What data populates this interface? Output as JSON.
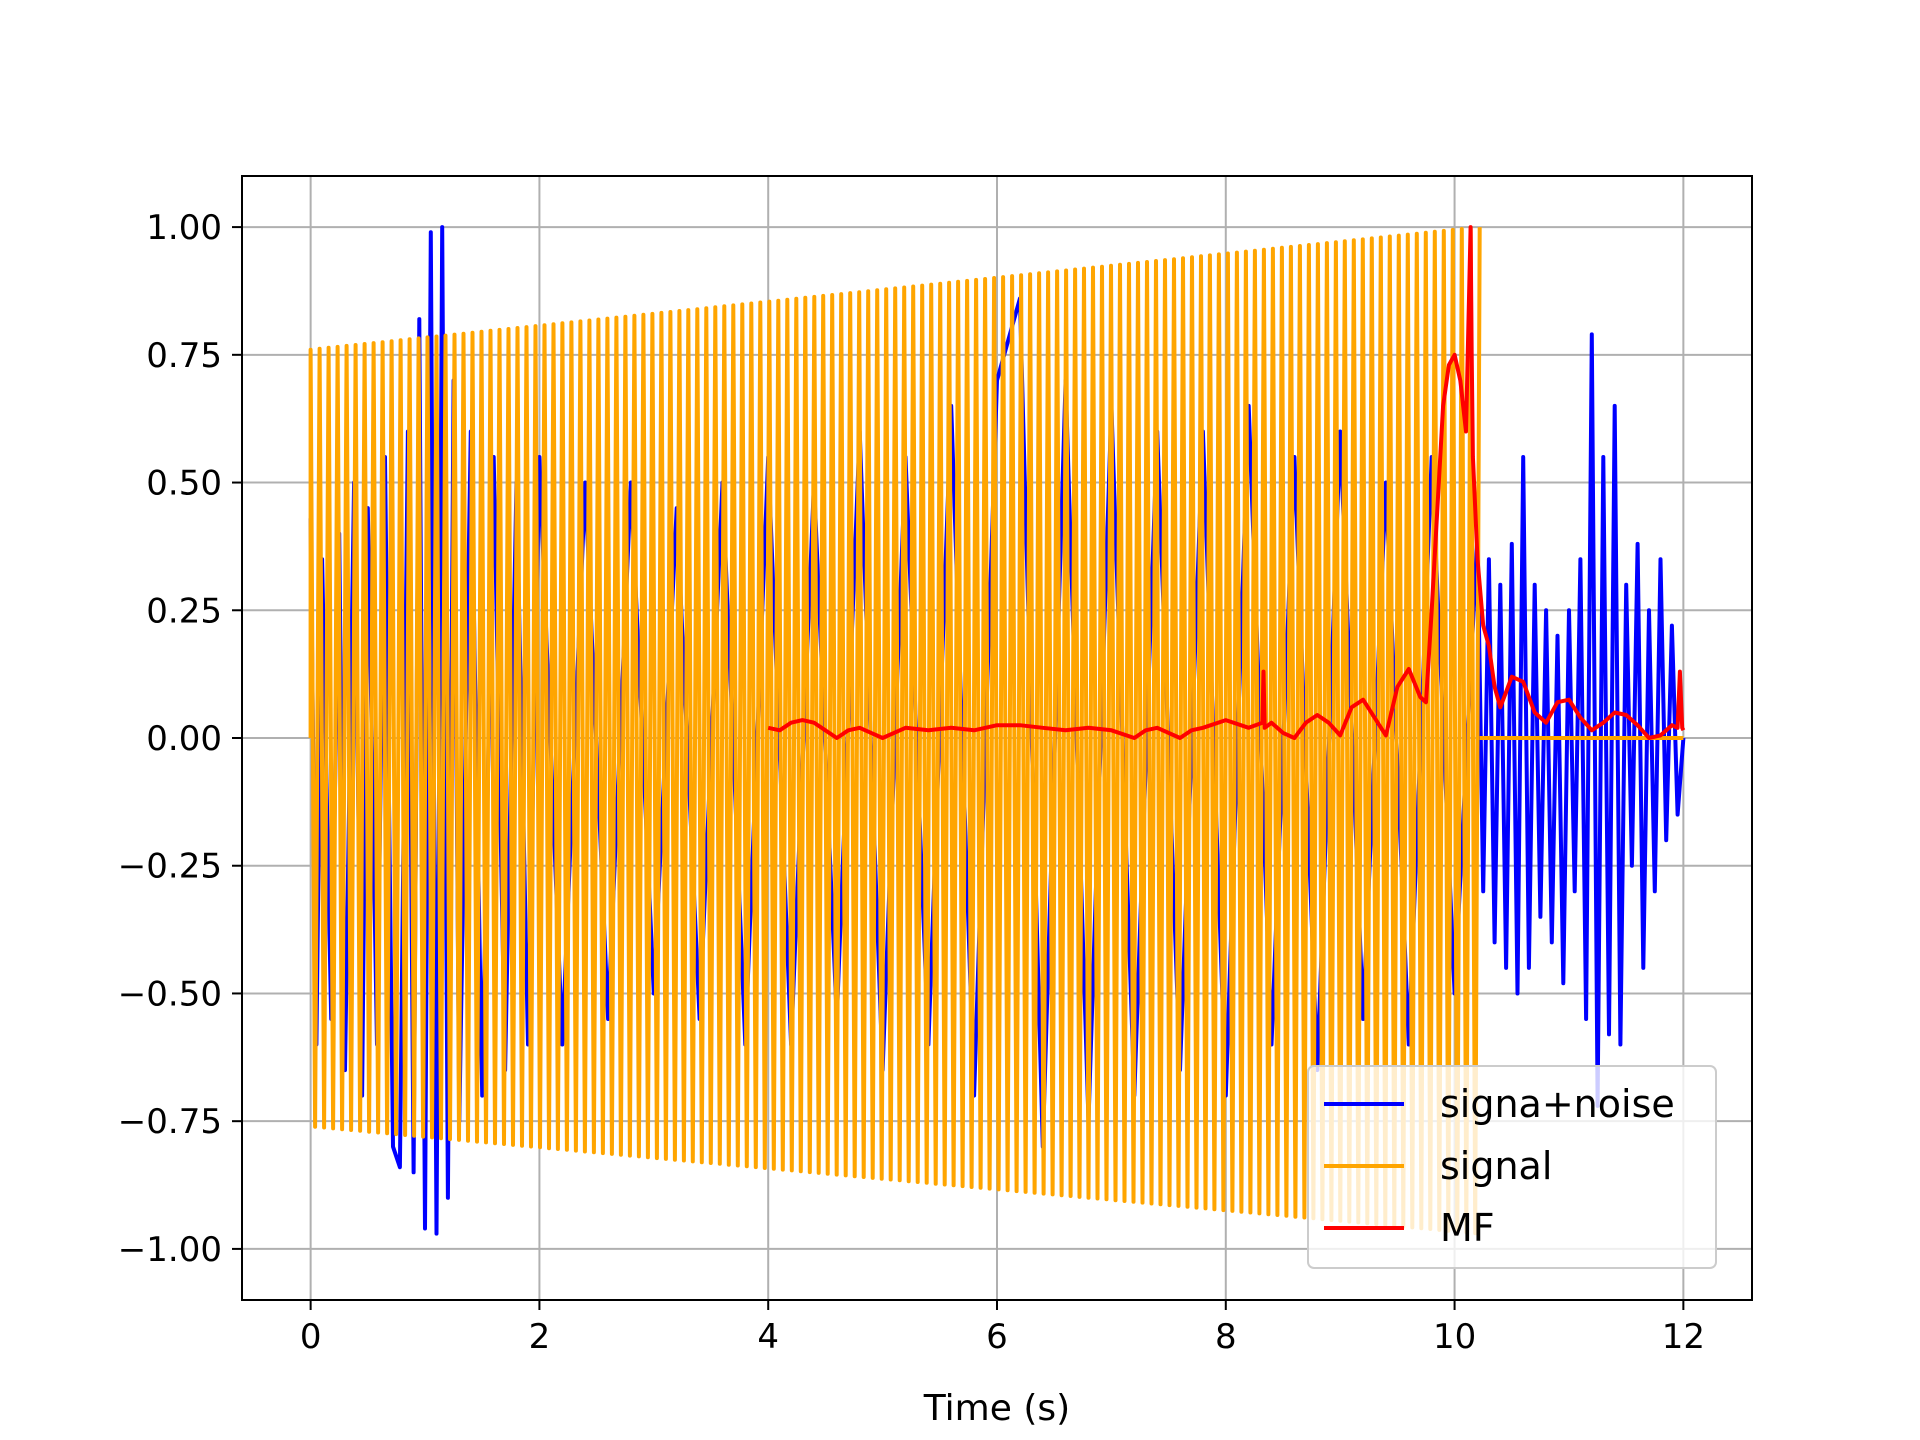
{
  "chart_data": {
    "type": "line",
    "title": "",
    "xlabel": "Time (s)",
    "ylabel": "",
    "xlim": [
      -0.6,
      12.6
    ],
    "ylim": [
      -1.1,
      1.1
    ],
    "xticks": [
      0,
      2,
      4,
      6,
      8,
      10,
      12
    ],
    "xtick_labels": [
      "0",
      "2",
      "4",
      "6",
      "8",
      "10",
      "12"
    ],
    "yticks": [
      1.0,
      0.75,
      0.5,
      0.25,
      0.0,
      -0.25,
      -0.5,
      -0.75,
      -1.0
    ],
    "ytick_labels": [
      "1.00",
      "0.75",
      "0.50",
      "0.25",
      "0.00",
      "−0.25",
      "−0.50",
      "−0.75",
      "−1.00"
    ],
    "grid": true,
    "legend_position": "lower-right",
    "series": [
      {
        "name": "signa+noise",
        "color": "#0000ff",
        "x": [
          0.0,
          0.05,
          0.1,
          0.18,
          0.25,
          0.3,
          0.38,
          0.45,
          0.5,
          0.58,
          0.65,
          0.72,
          0.78,
          0.85,
          0.9,
          0.95,
          1.0,
          1.05,
          1.1,
          1.15,
          1.2,
          1.25,
          1.3,
          1.4,
          1.5,
          1.6,
          1.7,
          1.8,
          1.9,
          2.0,
          2.2,
          2.4,
          2.6,
          2.8,
          3.0,
          3.2,
          3.4,
          3.6,
          3.8,
          4.0,
          4.2,
          4.4,
          4.6,
          4.8,
          5.0,
          5.2,
          5.4,
          5.6,
          5.8,
          6.0,
          6.2,
          6.4,
          6.6,
          6.8,
          7.0,
          7.2,
          7.4,
          7.6,
          7.8,
          8.0,
          8.2,
          8.4,
          8.6,
          8.8,
          9.0,
          9.2,
          9.4,
          9.6,
          9.8,
          10.0,
          10.2,
          10.25,
          10.3,
          10.35,
          10.4,
          10.45,
          10.5,
          10.55,
          10.6,
          10.65,
          10.7,
          10.75,
          10.8,
          10.85,
          10.9,
          10.95,
          11.0,
          11.05,
          11.1,
          11.15,
          11.2,
          11.25,
          11.3,
          11.35,
          11.4,
          11.45,
          11.5,
          11.55,
          11.6,
          11.65,
          11.7,
          11.75,
          11.8,
          11.85,
          11.9,
          11.95,
          12.0
        ],
        "y": [
          0.43,
          -0.6,
          0.35,
          -0.55,
          0.4,
          -0.65,
          0.5,
          -0.7,
          0.45,
          -0.6,
          0.55,
          -0.8,
          -0.84,
          0.6,
          -0.85,
          0.82,
          -0.96,
          0.99,
          -0.97,
          1.0,
          -0.9,
          0.7,
          -0.75,
          0.6,
          -0.7,
          0.55,
          -0.65,
          0.5,
          -0.6,
          0.55,
          -0.6,
          0.5,
          -0.55,
          0.5,
          -0.5,
          0.45,
          -0.55,
          0.5,
          -0.6,
          0.55,
          -0.6,
          0.5,
          -0.55,
          0.6,
          -0.65,
          0.55,
          -0.6,
          0.65,
          -0.7,
          0.7,
          0.86,
          -0.8,
          0.7,
          -0.75,
          0.65,
          -0.7,
          0.6,
          -0.65,
          0.6,
          -0.7,
          0.65,
          -0.6,
          0.55,
          -0.65,
          0.6,
          -0.55,
          0.5,
          -0.6,
          0.55,
          -0.5,
          0.4,
          -0.3,
          0.35,
          -0.4,
          0.3,
          -0.45,
          0.38,
          -0.5,
          0.55,
          -0.45,
          0.3,
          -0.35,
          0.25,
          -0.4,
          0.2,
          -0.48,
          0.25,
          -0.3,
          0.35,
          -0.55,
          0.79,
          -0.72,
          0.55,
          -0.58,
          0.65,
          -0.6,
          0.3,
          -0.25,
          0.38,
          -0.45,
          0.25,
          -0.3,
          0.35,
          -0.2,
          0.22,
          -0.15,
          0.0
        ]
      },
      {
        "name": "signal",
        "color": "#ffa500",
        "kind": "chirp",
        "t_start": 0.0,
        "t_end": 10.22,
        "peak_start": 0.76,
        "peak_end": 1.0,
        "trough_start": -0.76,
        "trough_end": -0.97,
        "cycles": 130,
        "tail_x": [
          10.22,
          12.0
        ],
        "tail_y": [
          0.0,
          0.0
        ]
      },
      {
        "name": "MF",
        "color": "#ff0000",
        "x": [
          4.0,
          4.1,
          4.2,
          4.3,
          4.4,
          4.5,
          4.6,
          4.7,
          4.8,
          4.9,
          5.0,
          5.2,
          5.4,
          5.6,
          5.8,
          6.0,
          6.2,
          6.4,
          6.6,
          6.8,
          7.0,
          7.2,
          7.3,
          7.4,
          7.6,
          7.7,
          7.8,
          8.0,
          8.2,
          8.32,
          8.33,
          8.34,
          8.4,
          8.5,
          8.6,
          8.7,
          8.8,
          8.9,
          9.0,
          9.1,
          9.2,
          9.3,
          9.4,
          9.5,
          9.6,
          9.7,
          9.75,
          9.8,
          9.85,
          9.9,
          9.95,
          10.0,
          10.05,
          10.1,
          10.14,
          10.15,
          10.16,
          10.2,
          10.25,
          10.3,
          10.35,
          10.4,
          10.45,
          10.5,
          10.6,
          10.7,
          10.8,
          10.9,
          11.0,
          11.1,
          11.2,
          11.3,
          11.4,
          11.5,
          11.6,
          11.7,
          11.8,
          11.9,
          11.95,
          11.97,
          11.99,
          12.0
        ],
        "y": [
          0.02,
          0.015,
          0.03,
          0.035,
          0.03,
          0.015,
          0.0,
          0.015,
          0.02,
          0.01,
          0.0,
          0.02,
          0.015,
          0.02,
          0.015,
          0.025,
          0.025,
          0.02,
          0.015,
          0.02,
          0.015,
          0.0,
          0.015,
          0.02,
          0.0,
          0.015,
          0.02,
          0.035,
          0.02,
          0.03,
          0.13,
          0.02,
          0.03,
          0.01,
          0.0,
          0.03,
          0.045,
          0.03,
          0.005,
          0.06,
          0.075,
          0.04,
          0.005,
          0.1,
          0.135,
          0.08,
          0.07,
          0.25,
          0.45,
          0.65,
          0.73,
          0.75,
          0.7,
          0.6,
          1.0,
          0.75,
          0.55,
          0.35,
          0.22,
          0.18,
          0.1,
          0.06,
          0.09,
          0.12,
          0.11,
          0.05,
          0.03,
          0.07,
          0.075,
          0.04,
          0.015,
          0.03,
          0.05,
          0.045,
          0.025,
          0.0,
          0.005,
          0.025,
          0.02,
          0.13,
          0.02,
          0.015
        ]
      }
    ]
  }
}
